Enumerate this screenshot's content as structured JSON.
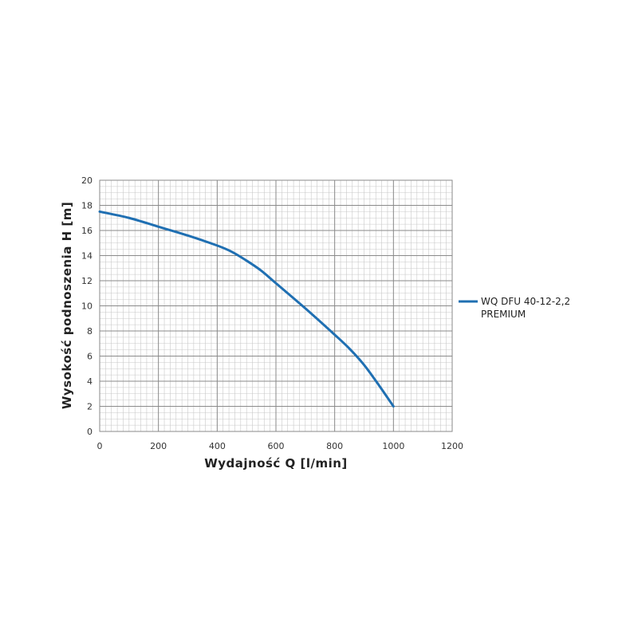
{
  "chart_data": {
    "type": "line",
    "xlabel": "Wydajność Q [l/min]",
    "ylabel": "Wysokość podnoszenia H [m]",
    "xlim": [
      0,
      1200
    ],
    "ylim": [
      0,
      20
    ],
    "x_ticks": [
      0,
      200,
      400,
      600,
      800,
      1000,
      1200
    ],
    "y_ticks": [
      0,
      2,
      4,
      6,
      8,
      10,
      12,
      14,
      16,
      18,
      20
    ],
    "x_tick_labels": [
      "0",
      "200",
      "400",
      "600",
      "800",
      "1000",
      "1200"
    ],
    "y_tick_labels": [
      "0",
      "2",
      "4",
      "6",
      "8",
      "10",
      "12",
      "14",
      "16",
      "18",
      "20"
    ],
    "grid": true,
    "legend_position": "right",
    "series": [
      {
        "name": "WQ DFU 40-12-2,2 PREMIUM",
        "legend_lines": [
          "WQ DFU 40-12-2,2",
          "PREMIUM"
        ],
        "color": "#1f6fb2",
        "x": [
          0,
          100,
          200,
          300,
          400,
          450,
          500,
          550,
          600,
          700,
          800,
          850,
          900,
          950,
          1000
        ],
        "y": [
          17.5,
          17.0,
          16.3,
          15.6,
          14.8,
          14.3,
          13.6,
          12.8,
          11.8,
          9.8,
          7.7,
          6.6,
          5.3,
          3.7,
          2.0
        ]
      }
    ]
  }
}
